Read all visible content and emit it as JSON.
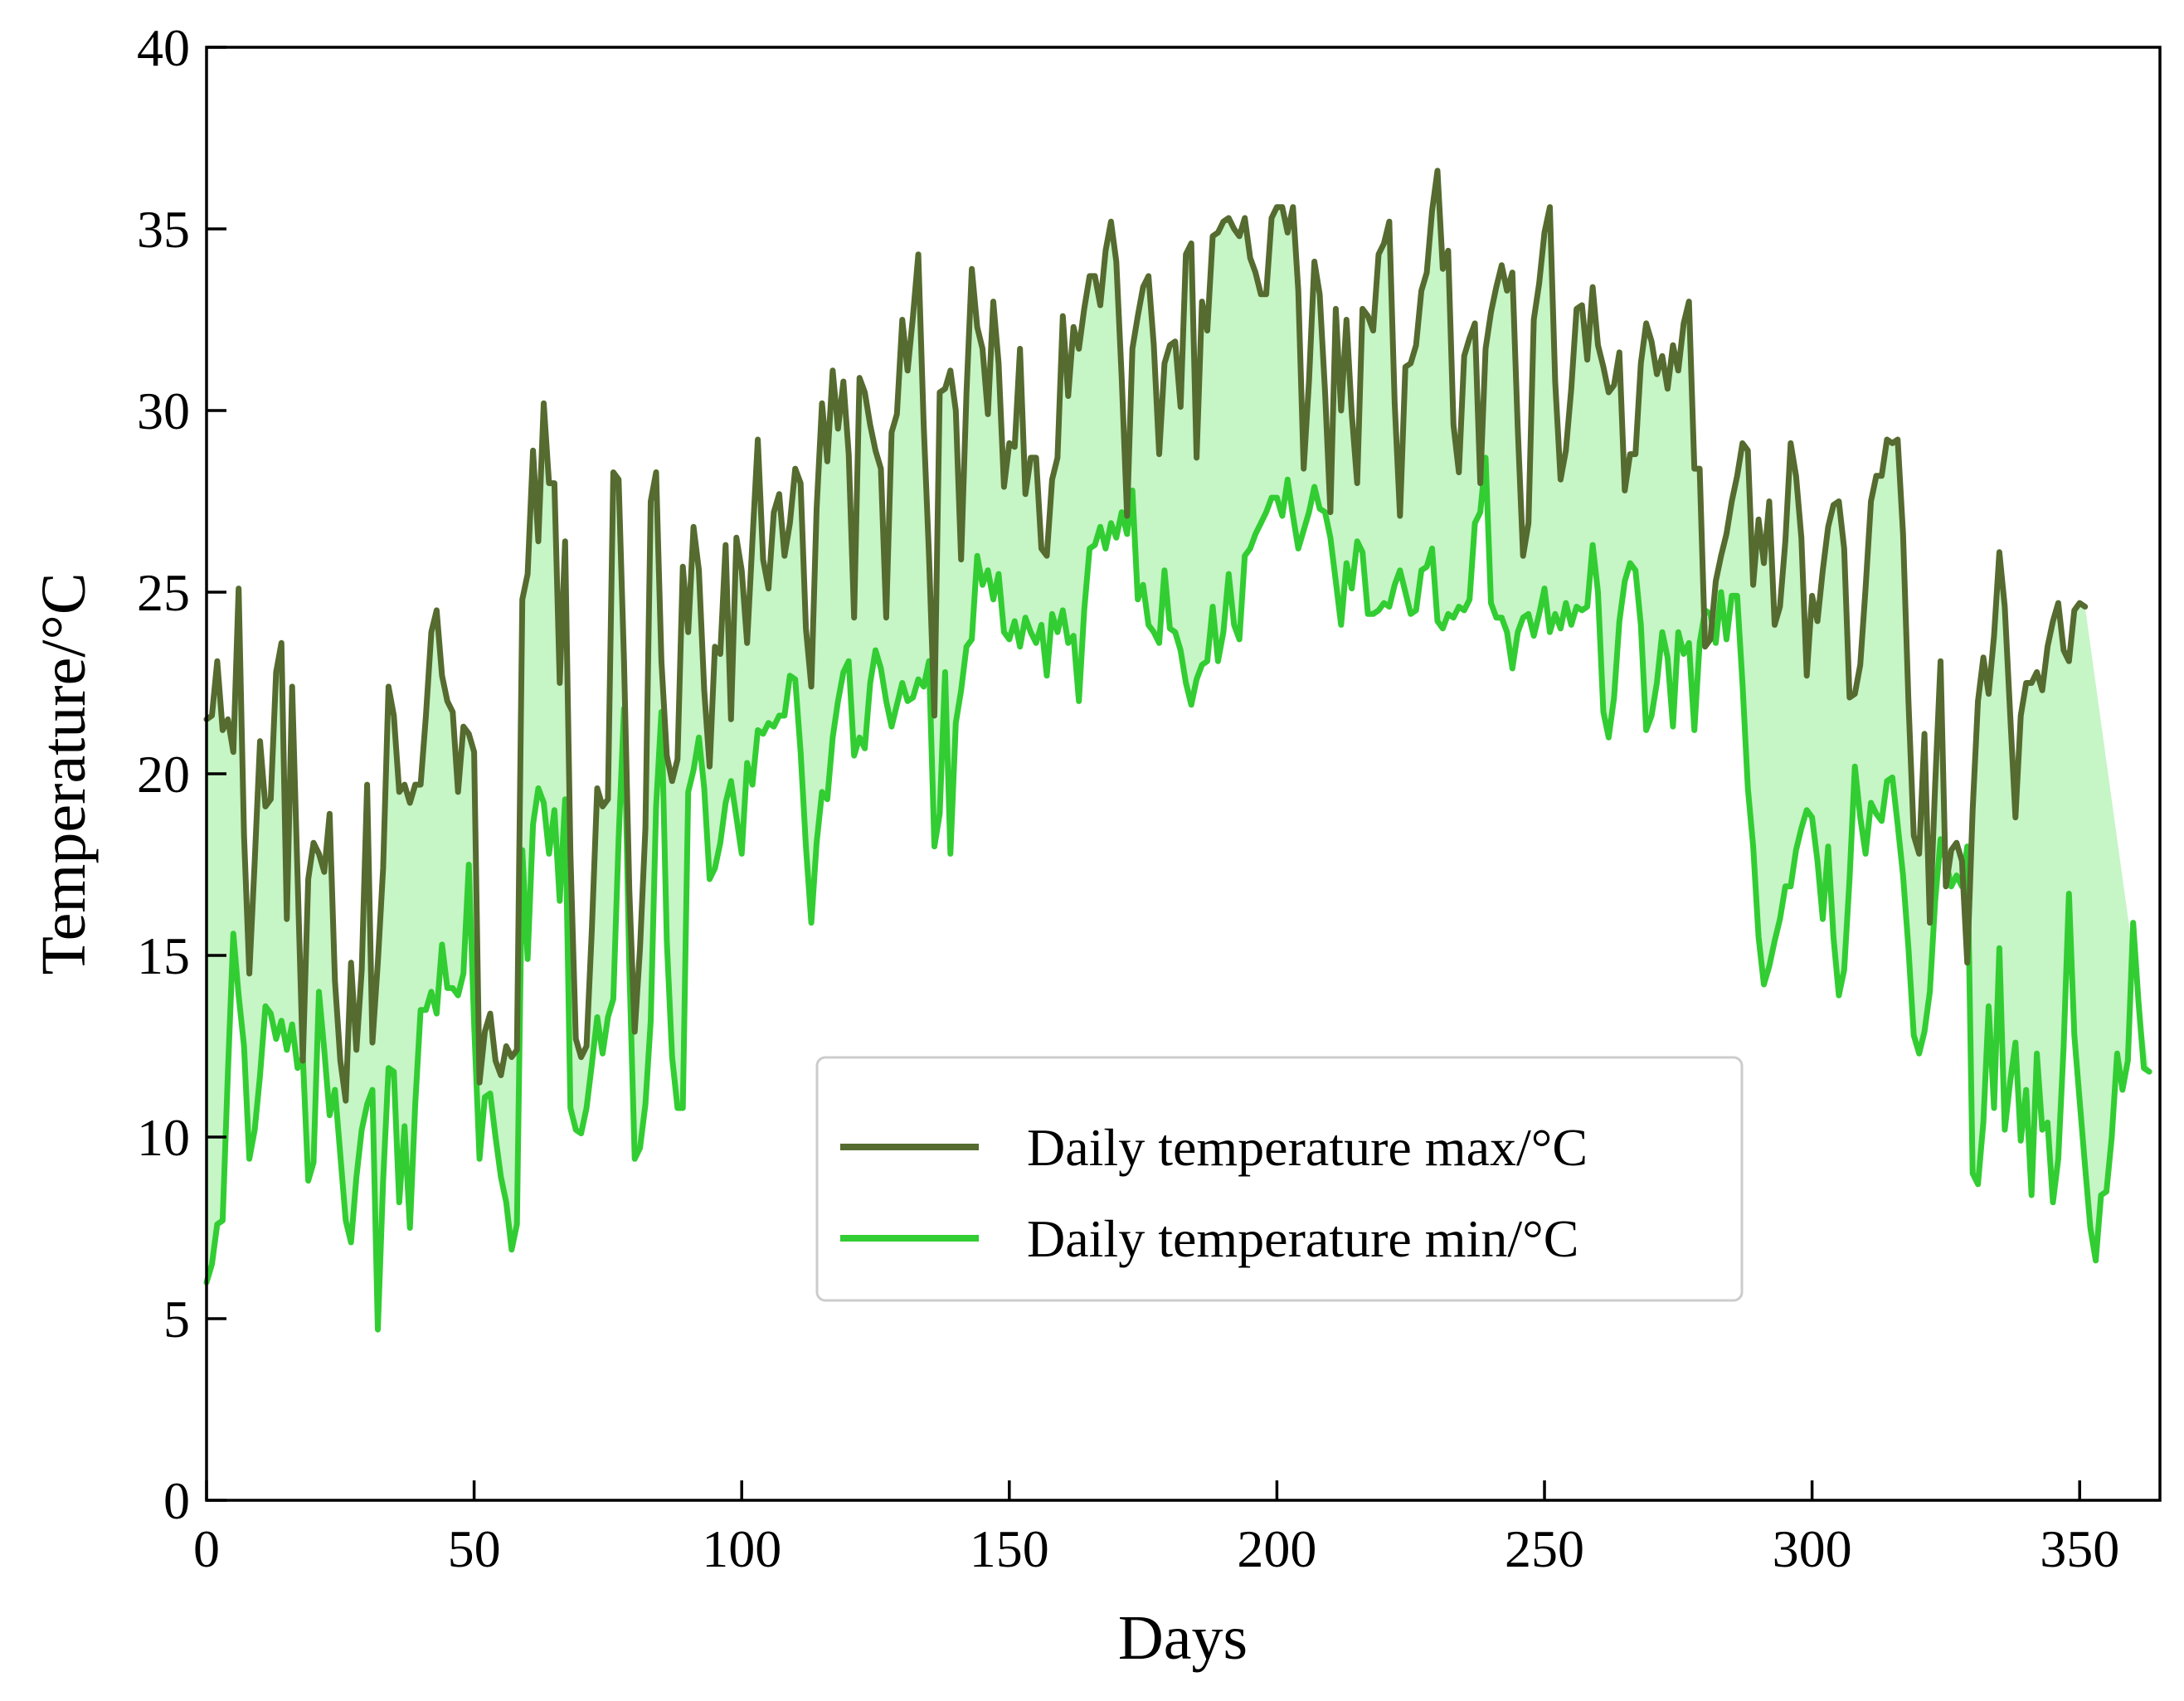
{
  "colors": {
    "max_line": "#556b2f",
    "min_line": "#32cd32",
    "fill": "#c6f5c6",
    "axis": "#000000",
    "legend_border": "#cccccc"
  },
  "chart_data": {
    "type": "line",
    "title": "",
    "xlabel": "Days",
    "ylabel": "Temperature/°C",
    "xlim": [
      0,
      365
    ],
    "ylim": [
      0,
      40
    ],
    "xticks": [
      0,
      50,
      100,
      150,
      200,
      250,
      300,
      350
    ],
    "yticks": [
      0,
      5,
      10,
      15,
      20,
      25,
      30,
      35,
      40
    ],
    "grid": false,
    "legend_position": "center-right",
    "fill_between": true,
    "series": [
      {
        "name": "Daily temperature max/°C",
        "values": [
          21.5,
          21.6,
          23.1,
          21.2,
          21.5,
          20.6,
          25.1,
          18.3,
          14.5,
          17.6,
          20.9,
          19.1,
          19.3,
          22.8,
          23.6,
          16.0,
          22.4,
          17.2,
          12.1,
          17.1,
          18.1,
          17.8,
          17.3,
          18.9,
          14.3,
          12.1,
          11.0,
          14.8,
          12.4,
          14.6,
          19.7,
          12.6,
          14.8,
          17.4,
          22.4,
          21.6,
          19.5,
          19.7,
          19.2,
          19.7,
          19.7,
          21.6,
          23.9,
          24.5,
          22.7,
          22.0,
          21.7,
          19.5,
          21.3,
          21.1,
          20.6,
          11.5,
          12.9,
          13.4,
          12.1,
          11.7,
          12.5,
          12.2,
          12.4,
          24.8,
          25.5,
          28.9,
          26.4,
          30.2,
          28.0,
          28.0,
          22.5,
          26.4,
          17.8,
          12.7,
          12.2,
          12.5,
          15.7,
          19.6,
          19.1,
          19.3,
          28.3,
          28.1,
          23.1,
          16.8,
          12.9,
          15.2,
          18.5,
          27.5,
          28.3,
          23.1,
          20.5,
          19.8,
          20.4,
          25.7,
          23.9,
          26.8,
          25.6,
          22.3,
          20.2,
          23.5,
          23.3,
          26.3,
          21.5,
          26.5,
          25.6,
          23.6,
          26.4,
          29.2,
          25.9,
          25.1,
          27.2,
          27.7,
          26.0,
          26.9,
          28.4,
          28.0,
          24.0,
          22.4,
          27.3,
          30.2,
          28.6,
          31.1,
          29.5,
          30.8,
          28.8,
          24.3,
          30.9,
          30.5,
          29.6,
          28.9,
          28.4,
          24.3,
          29.4,
          29.9,
          32.5,
          31.1,
          32.6,
          34.3,
          29.6,
          26.0,
          21.6,
          30.5,
          30.6,
          31.1,
          30.0,
          25.9,
          30.5,
          33.9,
          32.3,
          31.7,
          29.9,
          33.0,
          31.3,
          27.9,
          29.1,
          29.0,
          31.7,
          27.7,
          28.7,
          28.7,
          26.2,
          26.0,
          28.1,
          28.7,
          32.6,
          30.4,
          32.3,
          31.7,
          32.8,
          33.7,
          33.7,
          32.9,
          34.4,
          35.2,
          34.1,
          30.9,
          27.1,
          31.7,
          32.6,
          33.4,
          33.7,
          31.8,
          28.8,
          31.3,
          31.8,
          31.9,
          30.1,
          34.3,
          34.6,
          28.7,
          33.0,
          32.2,
          34.8,
          34.9,
          35.2,
          35.3,
          35.0,
          34.8,
          35.3,
          34.2,
          33.8,
          33.2,
          33.2,
          35.3,
          35.6,
          35.6,
          34.9,
          35.6,
          33.3,
          28.4,
          30.8,
          34.1,
          33.2,
          30.5,
          27.2,
          32.8,
          30.0,
          32.5,
          29.9,
          28.0,
          32.8,
          32.6,
          32.2,
          34.3,
          34.6,
          35.2,
          30.2,
          27.1,
          31.2,
          31.3,
          31.8,
          33.3,
          33.8,
          35.5,
          36.6,
          33.9,
          34.4,
          29.6,
          28.3,
          31.5,
          32.0,
          32.4,
          28.0,
          31.7,
          32.7,
          33.4,
          34.0,
          33.3,
          33.8,
          29.5,
          26.0,
          26.9,
          32.5,
          33.5,
          34.9,
          35.6,
          30.8,
          28.1,
          28.9,
          30.6,
          32.8,
          32.9,
          31.4,
          33.4,
          31.8,
          31.2,
          30.5,
          30.7,
          31.6,
          27.8,
          28.8,
          28.8,
          31.3,
          32.4,
          31.9,
          31.0,
          31.5,
          30.6,
          31.8,
          31.1,
          32.4,
          33.0,
          28.4,
          28.4,
          23.5,
          23.7,
          25.3,
          26.0,
          26.6,
          27.5,
          28.2,
          29.1,
          28.9,
          25.2,
          27.0,
          25.8,
          27.5,
          24.1,
          24.6,
          26.4,
          29.1,
          28.2,
          26.5,
          22.7,
          24.9,
          24.2,
          25.6,
          26.8,
          27.4,
          27.5,
          26.2,
          22.1,
          22.2,
          23.0,
          25.1,
          27.5,
          28.2,
          28.2,
          29.2,
          29.1,
          29.2,
          26.6,
          22.0,
          18.3,
          17.8,
          21.1,
          15.9,
          19.7,
          23.1,
          16.9,
          17.9,
          18.1,
          17.6,
          14.8,
          19.0,
          22.0,
          23.2,
          22.2,
          23.8,
          26.1,
          24.6,
          21.7,
          18.8,
          21.6,
          22.5,
          22.5,
          22.8,
          22.3,
          23.5,
          24.2,
          24.7,
          23.4,
          23.1,
          24.5,
          24.7,
          24.6
        ]
      },
      {
        "name": "Daily temperature min/°C",
        "values": [
          6.0,
          6.5,
          7.6,
          7.7,
          11.8,
          15.6,
          13.9,
          12.5,
          9.4,
          10.2,
          11.7,
          13.6,
          13.4,
          12.7,
          13.2,
          12.4,
          13.1,
          11.9,
          12.2,
          8.8,
          9.3,
          14.0,
          12.4,
          10.6,
          11.3,
          9.5,
          7.7,
          7.1,
          8.9,
          10.2,
          10.9,
          11.3,
          4.7,
          8.8,
          11.9,
          11.8,
          8.2,
          10.3,
          7.5,
          10.9,
          13.5,
          13.5,
          14.0,
          13.4,
          15.3,
          14.1,
          14.1,
          13.9,
          14.5,
          17.5,
          13.1,
          9.4,
          11.1,
          11.2,
          10.0,
          8.9,
          8.2,
          6.9,
          7.6,
          17.9,
          14.9,
          18.6,
          19.6,
          19.2,
          17.8,
          19.0,
          16.5,
          19.3,
          10.8,
          10.2,
          10.1,
          10.8,
          12.0,
          13.3,
          12.3,
          13.3,
          13.8,
          18.2,
          21.8,
          14.7,
          9.4,
          9.7,
          10.9,
          13.2,
          19.1,
          21.7,
          15.4,
          12.2,
          10.8,
          10.8,
          19.5,
          20.1,
          21.0,
          19.6,
          17.1,
          17.4,
          18.1,
          19.2,
          19.8,
          18.8,
          17.8,
          20.3,
          19.7,
          21.2,
          21.1,
          21.4,
          21.3,
          21.6,
          21.6,
          22.7,
          22.6,
          20.6,
          18.0,
          15.9,
          18.1,
          19.5,
          19.3,
          21.0,
          22.0,
          22.8,
          23.1,
          20.5,
          21.0,
          20.7,
          22.5,
          23.4,
          22.9,
          22.0,
          21.3,
          21.9,
          22.5,
          22.0,
          22.1,
          22.6,
          22.4,
          23.1,
          18.0,
          18.9,
          22.8,
          17.8,
          21.4,
          22.3,
          23.5,
          23.7,
          26.0,
          25.2,
          25.6,
          24.8,
          25.5,
          23.9,
          23.7,
          24.2,
          23.5,
          24.3,
          23.9,
          23.6,
          24.1,
          22.7,
          24.4,
          23.9,
          24.5,
          23.6,
          23.8,
          22.0,
          24.5,
          26.2,
          26.3,
          26.8,
          26.2,
          26.9,
          26.5,
          27.2,
          26.6,
          27.8,
          24.8,
          25.2,
          24.1,
          23.9,
          23.6,
          25.6,
          24.0,
          23.9,
          23.4,
          22.5,
          21.9,
          22.6,
          23.0,
          23.1,
          24.6,
          23.1,
          23.9,
          25.5,
          24.1,
          23.7,
          26.0,
          26.2,
          26.6,
          26.9,
          27.2,
          27.6,
          27.6,
          27.1,
          28.1,
          27.1,
          26.2,
          26.7,
          27.2,
          27.9,
          27.3,
          27.2,
          26.5,
          25.3,
          24.1,
          25.8,
          25.1,
          26.4,
          26.1,
          24.4,
          24.4,
          24.5,
          24.7,
          24.6,
          25.2,
          25.6,
          25.0,
          24.4,
          24.5,
          25.6,
          25.7,
          26.2,
          24.2,
          24.0,
          24.4,
          24.3,
          24.6,
          24.5,
          24.8,
          26.9,
          27.2,
          28.7,
          24.7,
          24.3,
          24.3,
          23.9,
          22.9,
          23.9,
          24.3,
          24.4,
          23.8,
          24.4,
          25.1,
          23.9,
          24.4,
          24.0,
          24.7,
          24.1,
          24.6,
          24.5,
          24.6,
          26.3,
          25.0,
          21.7,
          21.0,
          22.1,
          24.2,
          25.3,
          25.8,
          25.6,
          24.1,
          21.2,
          21.6,
          22.5,
          23.9,
          23.2,
          21.3,
          23.9,
          23.3,
          23.6,
          21.2,
          23.6,
          24.5,
          24.4,
          23.6,
          25.0,
          23.7,
          24.9,
          24.9,
          22.5,
          19.6,
          18.0,
          15.5,
          14.2,
          14.7,
          15.4,
          16.0,
          16.9,
          16.9,
          17.9,
          18.5,
          19.0,
          18.8,
          17.6,
          16.0,
          18.0,
          15.5,
          13.9,
          14.6,
          17.1,
          20.2,
          18.8,
          17.8,
          19.2,
          18.9,
          18.7,
          19.8,
          19.9,
          18.6,
          17.2,
          15.2,
          12.8,
          12.3,
          12.9,
          14.0,
          16.5,
          18.2,
          17.6,
          16.9,
          17.2,
          16.9,
          18.0,
          9.0,
          8.7,
          10.4,
          13.6,
          10.8,
          15.2,
          10.2,
          11.5,
          12.6,
          9.9,
          11.3,
          8.4,
          12.3,
          10.2,
          10.4,
          8.2,
          9.4,
          12.5,
          16.7,
          12.8,
          11.0,
          9.2,
          7.5,
          6.6,
          8.4,
          8.5,
          10.0,
          12.3,
          11.3,
          12.1,
          15.9,
          13.7,
          11.9,
          11.8
        ]
      }
    ]
  }
}
